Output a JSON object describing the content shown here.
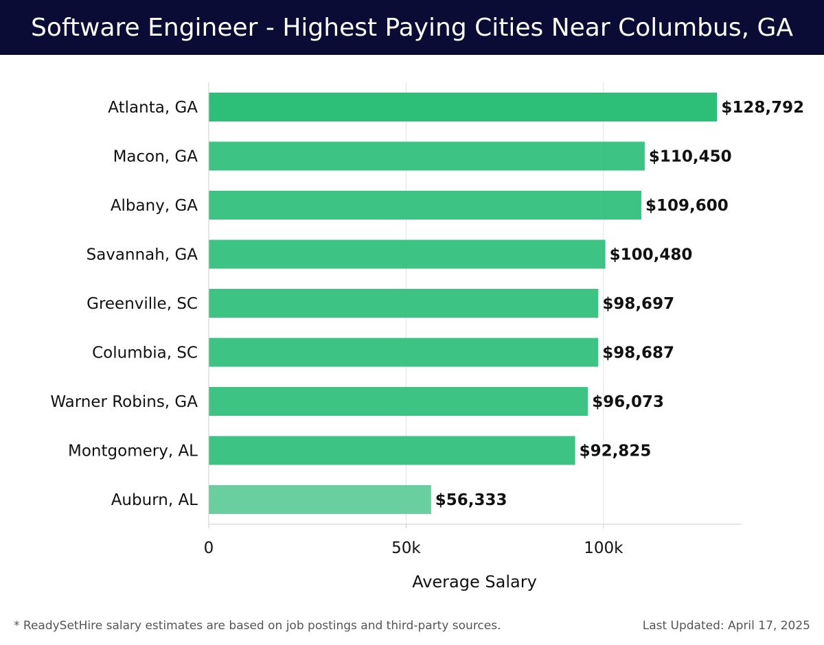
{
  "header": {
    "title": "Software Engineer - Highest Paying Cities Near Columbus, GA"
  },
  "chart_data": {
    "type": "bar",
    "orientation": "horizontal",
    "categories": [
      "Atlanta, GA",
      "Macon, GA",
      "Albany, GA",
      "Savannah, GA",
      "Greenville, SC",
      "Columbia, SC",
      "Warner Robins, GA",
      "Montgomery, AL",
      "Auburn, AL"
    ],
    "values": [
      128792,
      110450,
      109600,
      100480,
      98697,
      98687,
      96073,
      92825,
      56333
    ],
    "value_labels": [
      "$128,792",
      "$110,450",
      "$109,600",
      "$100,480",
      "$98,697",
      "$98,687",
      "$96,073",
      "$92,825",
      "$56,333"
    ],
    "xlabel": "Average Salary",
    "ylabel": "",
    "xlim": [
      0,
      135000
    ],
    "xticks": [
      0,
      50000,
      100000
    ],
    "xtick_labels": [
      "0",
      "50k",
      "100k"
    ],
    "grid": true,
    "bar_color": "#2dbe78",
    "bar_color_light": "#5ccb96"
  },
  "footer": {
    "note": "* ReadySetHire salary estimates are based on job postings and third-party sources.",
    "updated": "Last Updated: April 17, 2025"
  }
}
